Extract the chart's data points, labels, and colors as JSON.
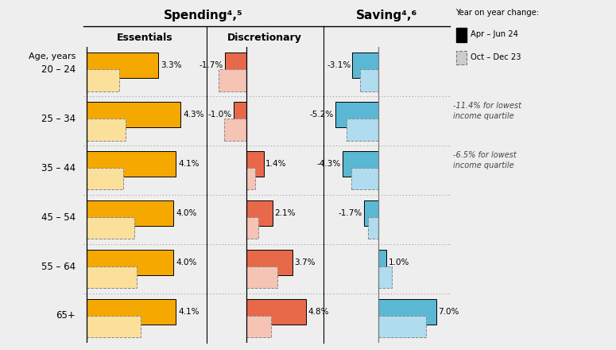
{
  "age_groups": [
    "20 – 24",
    "25 – 34",
    "35 – 44",
    "45 – 54",
    "55 – 64",
    "65+"
  ],
  "essentials_solid": [
    3.3,
    4.3,
    4.1,
    4.0,
    4.0,
    4.1
  ],
  "essentials_dashed": [
    1.5,
    1.8,
    1.7,
    2.2,
    2.3,
    2.5
  ],
  "discretionary_solid": [
    -1.7,
    -1.0,
    1.4,
    2.1,
    3.7,
    4.8
  ],
  "discretionary_dashed": [
    -2.2,
    -1.8,
    0.7,
    1.0,
    2.5,
    2.0
  ],
  "saving_solid": [
    -3.1,
    -5.2,
    -4.3,
    -1.7,
    1.0,
    7.0
  ],
  "saving_dashed": [
    -2.2,
    -3.8,
    -3.2,
    -1.2,
    1.6,
    5.8
  ],
  "color_essentials_solid": "#F5A800",
  "color_essentials_dashed": "#FAE09A",
  "color_discretionary_solid": "#E8694A",
  "color_discretionary_dashed": "#F5C4B5",
  "color_saving_solid": "#5BB8D4",
  "color_saving_dashed": "#B0DCF0",
  "bg_color": "#EEEEEE",
  "annotations_25_34": "-11.4% for lowest\nincome quartile",
  "annotations_35_44": "-6.5% for lowest\nincome quartile"
}
